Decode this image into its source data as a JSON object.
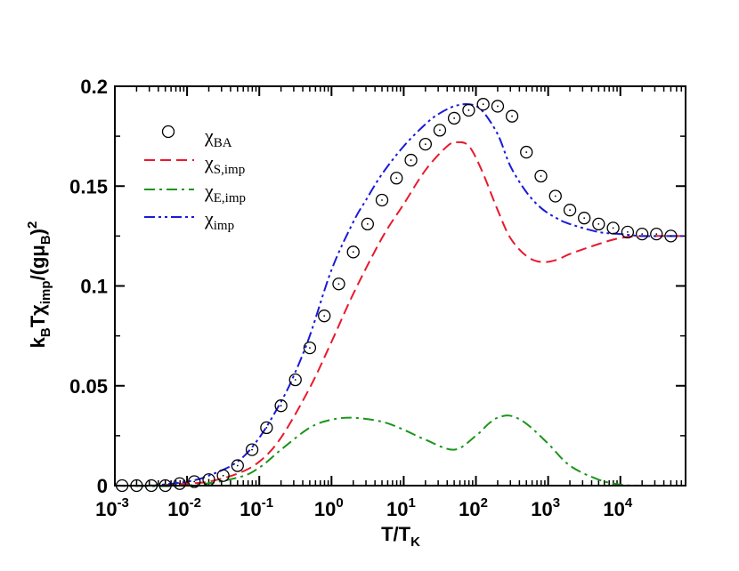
{
  "chart_data": {
    "type": "line",
    "title": "",
    "xscale": "log",
    "xlim": [
      0.001,
      80000
    ],
    "ylim": [
      0,
      0.2
    ],
    "xlabel": {
      "main": "T/T",
      "sub": "K"
    },
    "ylabel": {
      "p1": "k",
      "p1sub": "B",
      "p2": "Tχ",
      "p2sub": "imp",
      "p3": "/(gμ",
      "p3sub": "B",
      "p4": ")",
      "p4sup": "2"
    },
    "xticks": [
      {
        "value": 0.001,
        "base": "10",
        "exp": "-3"
      },
      {
        "value": 0.01,
        "base": "10",
        "exp": "-2"
      },
      {
        "value": 0.1,
        "base": "10",
        "exp": "-1"
      },
      {
        "value": 1,
        "base": "10",
        "exp": "0"
      },
      {
        "value": 10,
        "base": "10",
        "exp": "1"
      },
      {
        "value": 100,
        "base": "10",
        "exp": "2"
      },
      {
        "value": 1000,
        "base": "10",
        "exp": "3"
      },
      {
        "value": 10000,
        "base": "10",
        "exp": "4"
      }
    ],
    "yticks": [
      {
        "value": 0,
        "label": "0"
      },
      {
        "value": 0.05,
        "label": "0.05"
      },
      {
        "value": 0.1,
        "label": "0.1"
      },
      {
        "value": 0.15,
        "label": "0.15"
      },
      {
        "value": 0.2,
        "label": "0.2"
      }
    ],
    "legend": {
      "position": "top-left",
      "entries": [
        {
          "symbol": "χ",
          "sub": "BA"
        },
        {
          "symbol": "χ",
          "sub": "S,imp"
        },
        {
          "symbol": "χ",
          "sub": "E,imp"
        },
        {
          "symbol": "χ",
          "sub": "imp"
        }
      ]
    },
    "series": [
      {
        "name": "χ_BA",
        "style": "open-circles",
        "color": "#000000",
        "x": [
          0.00126,
          0.002,
          0.0032,
          0.005,
          0.0079,
          0.0126,
          0.02,
          0.0316,
          0.05,
          0.0794,
          0.126,
          0.2,
          0.316,
          0.5,
          0.794,
          1.26,
          2,
          3.16,
          5,
          7.94,
          12.6,
          20,
          31.6,
          50,
          79.4,
          126,
          200,
          316,
          500,
          794,
          1260,
          2000,
          3160,
          5000,
          7940,
          12600,
          20000,
          31600,
          50000
        ],
        "y": [
          0,
          0,
          0,
          0,
          0.001,
          0.002,
          0.003,
          0.005,
          0.01,
          0.018,
          0.029,
          0.04,
          0.053,
          0.069,
          0.085,
          0.101,
          0.117,
          0.131,
          0.143,
          0.154,
          0.163,
          0.171,
          0.178,
          0.184,
          0.188,
          0.191,
          0.19,
          0.185,
          0.167,
          0.155,
          0.145,
          0.138,
          0.134,
          0.131,
          0.129,
          0.127,
          0.126,
          0.126,
          0.125
        ]
      },
      {
        "name": "χ_S,imp",
        "style": "dashed",
        "color": "#e8192c",
        "x": [
          0.001,
          0.003,
          0.01,
          0.02,
          0.05,
          0.1,
          0.2,
          0.5,
          1,
          2,
          5,
          10,
          20,
          40,
          55,
          80,
          120,
          200,
          300,
          500,
          800,
          1300,
          2000,
          5000,
          10000,
          20000,
          50000,
          80000
        ],
        "y": [
          0,
          0,
          0.001,
          0.002,
          0.006,
          0.012,
          0.024,
          0.049,
          0.072,
          0.096,
          0.124,
          0.141,
          0.158,
          0.17,
          0.172,
          0.17,
          0.158,
          0.138,
          0.124,
          0.115,
          0.112,
          0.113,
          0.116,
          0.121,
          0.124,
          0.125,
          0.125,
          0.125
        ]
      },
      {
        "name": "χ_E,imp",
        "style": "dash-dot",
        "color": "#1a961a",
        "x": [
          0.001,
          0.01,
          0.05,
          0.1,
          0.2,
          0.5,
          1,
          2,
          5,
          10,
          20,
          50,
          100,
          150,
          200,
          300,
          500,
          1000,
          2000,
          5000,
          10000,
          20000,
          50000,
          80000
        ],
        "y": [
          0,
          0,
          0.004,
          0.009,
          0.018,
          0.029,
          0.033,
          0.034,
          0.032,
          0.028,
          0.023,
          0.018,
          0.025,
          0.031,
          0.034,
          0.035,
          0.031,
          0.021,
          0.01,
          0.003,
          0.0005,
          0,
          0,
          0
        ]
      },
      {
        "name": "χ_imp",
        "style": "dash-dot-dot",
        "color": "#1a1ad9",
        "x": [
          0.001,
          0.003,
          0.01,
          0.02,
          0.05,
          0.1,
          0.2,
          0.3,
          0.5,
          1,
          2,
          3,
          5,
          10,
          20,
          30,
          50,
          80,
          120,
          200,
          300,
          500,
          800,
          1300,
          2000,
          5000,
          10000,
          20000,
          50000,
          80000
        ],
        "y": [
          0,
          0,
          0.002,
          0.005,
          0.012,
          0.024,
          0.042,
          0.055,
          0.075,
          0.108,
          0.132,
          0.143,
          0.156,
          0.17,
          0.181,
          0.186,
          0.19,
          0.191,
          0.188,
          0.176,
          0.16,
          0.147,
          0.139,
          0.134,
          0.131,
          0.127,
          0.126,
          0.125,
          0.125,
          0.125
        ]
      }
    ]
  }
}
